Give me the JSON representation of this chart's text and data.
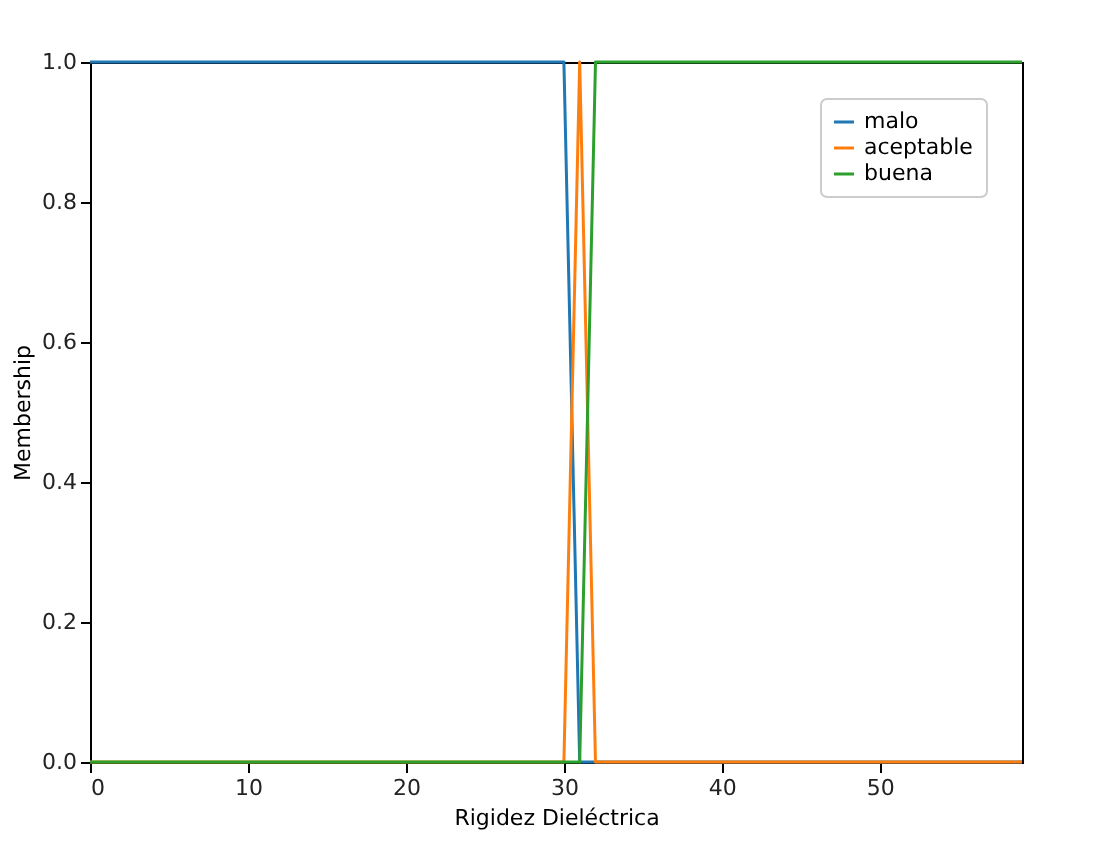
{
  "chart_data": {
    "type": "line",
    "xlabel": "Rigidez Dieléctrica",
    "ylabel": "Membership",
    "xlim": [
      0,
      59
    ],
    "xticks": [
      0,
      10,
      20,
      30,
      40,
      50
    ],
    "ylim": [
      0,
      1
    ],
    "yticks": [
      {
        "value": 0,
        "label": "0.0"
      },
      0.2,
      0.4,
      0.6,
      0.8,
      {
        "value": 1,
        "label": "1.0"
      }
    ],
    "legend": "top right",
    "grid": false,
    "series": [
      {
        "name": "malo",
        "color": "#1f77b4",
        "x": [
          0,
          30,
          31,
          59
        ],
        "values": [
          1,
          1,
          0,
          0
        ]
      },
      {
        "name": "aceptable",
        "color": "#ff7f0e",
        "x": [
          0,
          30,
          31,
          32,
          59
        ],
        "values": [
          0,
          0,
          1,
          0,
          0
        ]
      },
      {
        "name": "buena",
        "color": "#2ca02c",
        "x": [
          0,
          31,
          32,
          59
        ],
        "values": [
          0,
          0,
          1,
          1
        ]
      }
    ]
  }
}
